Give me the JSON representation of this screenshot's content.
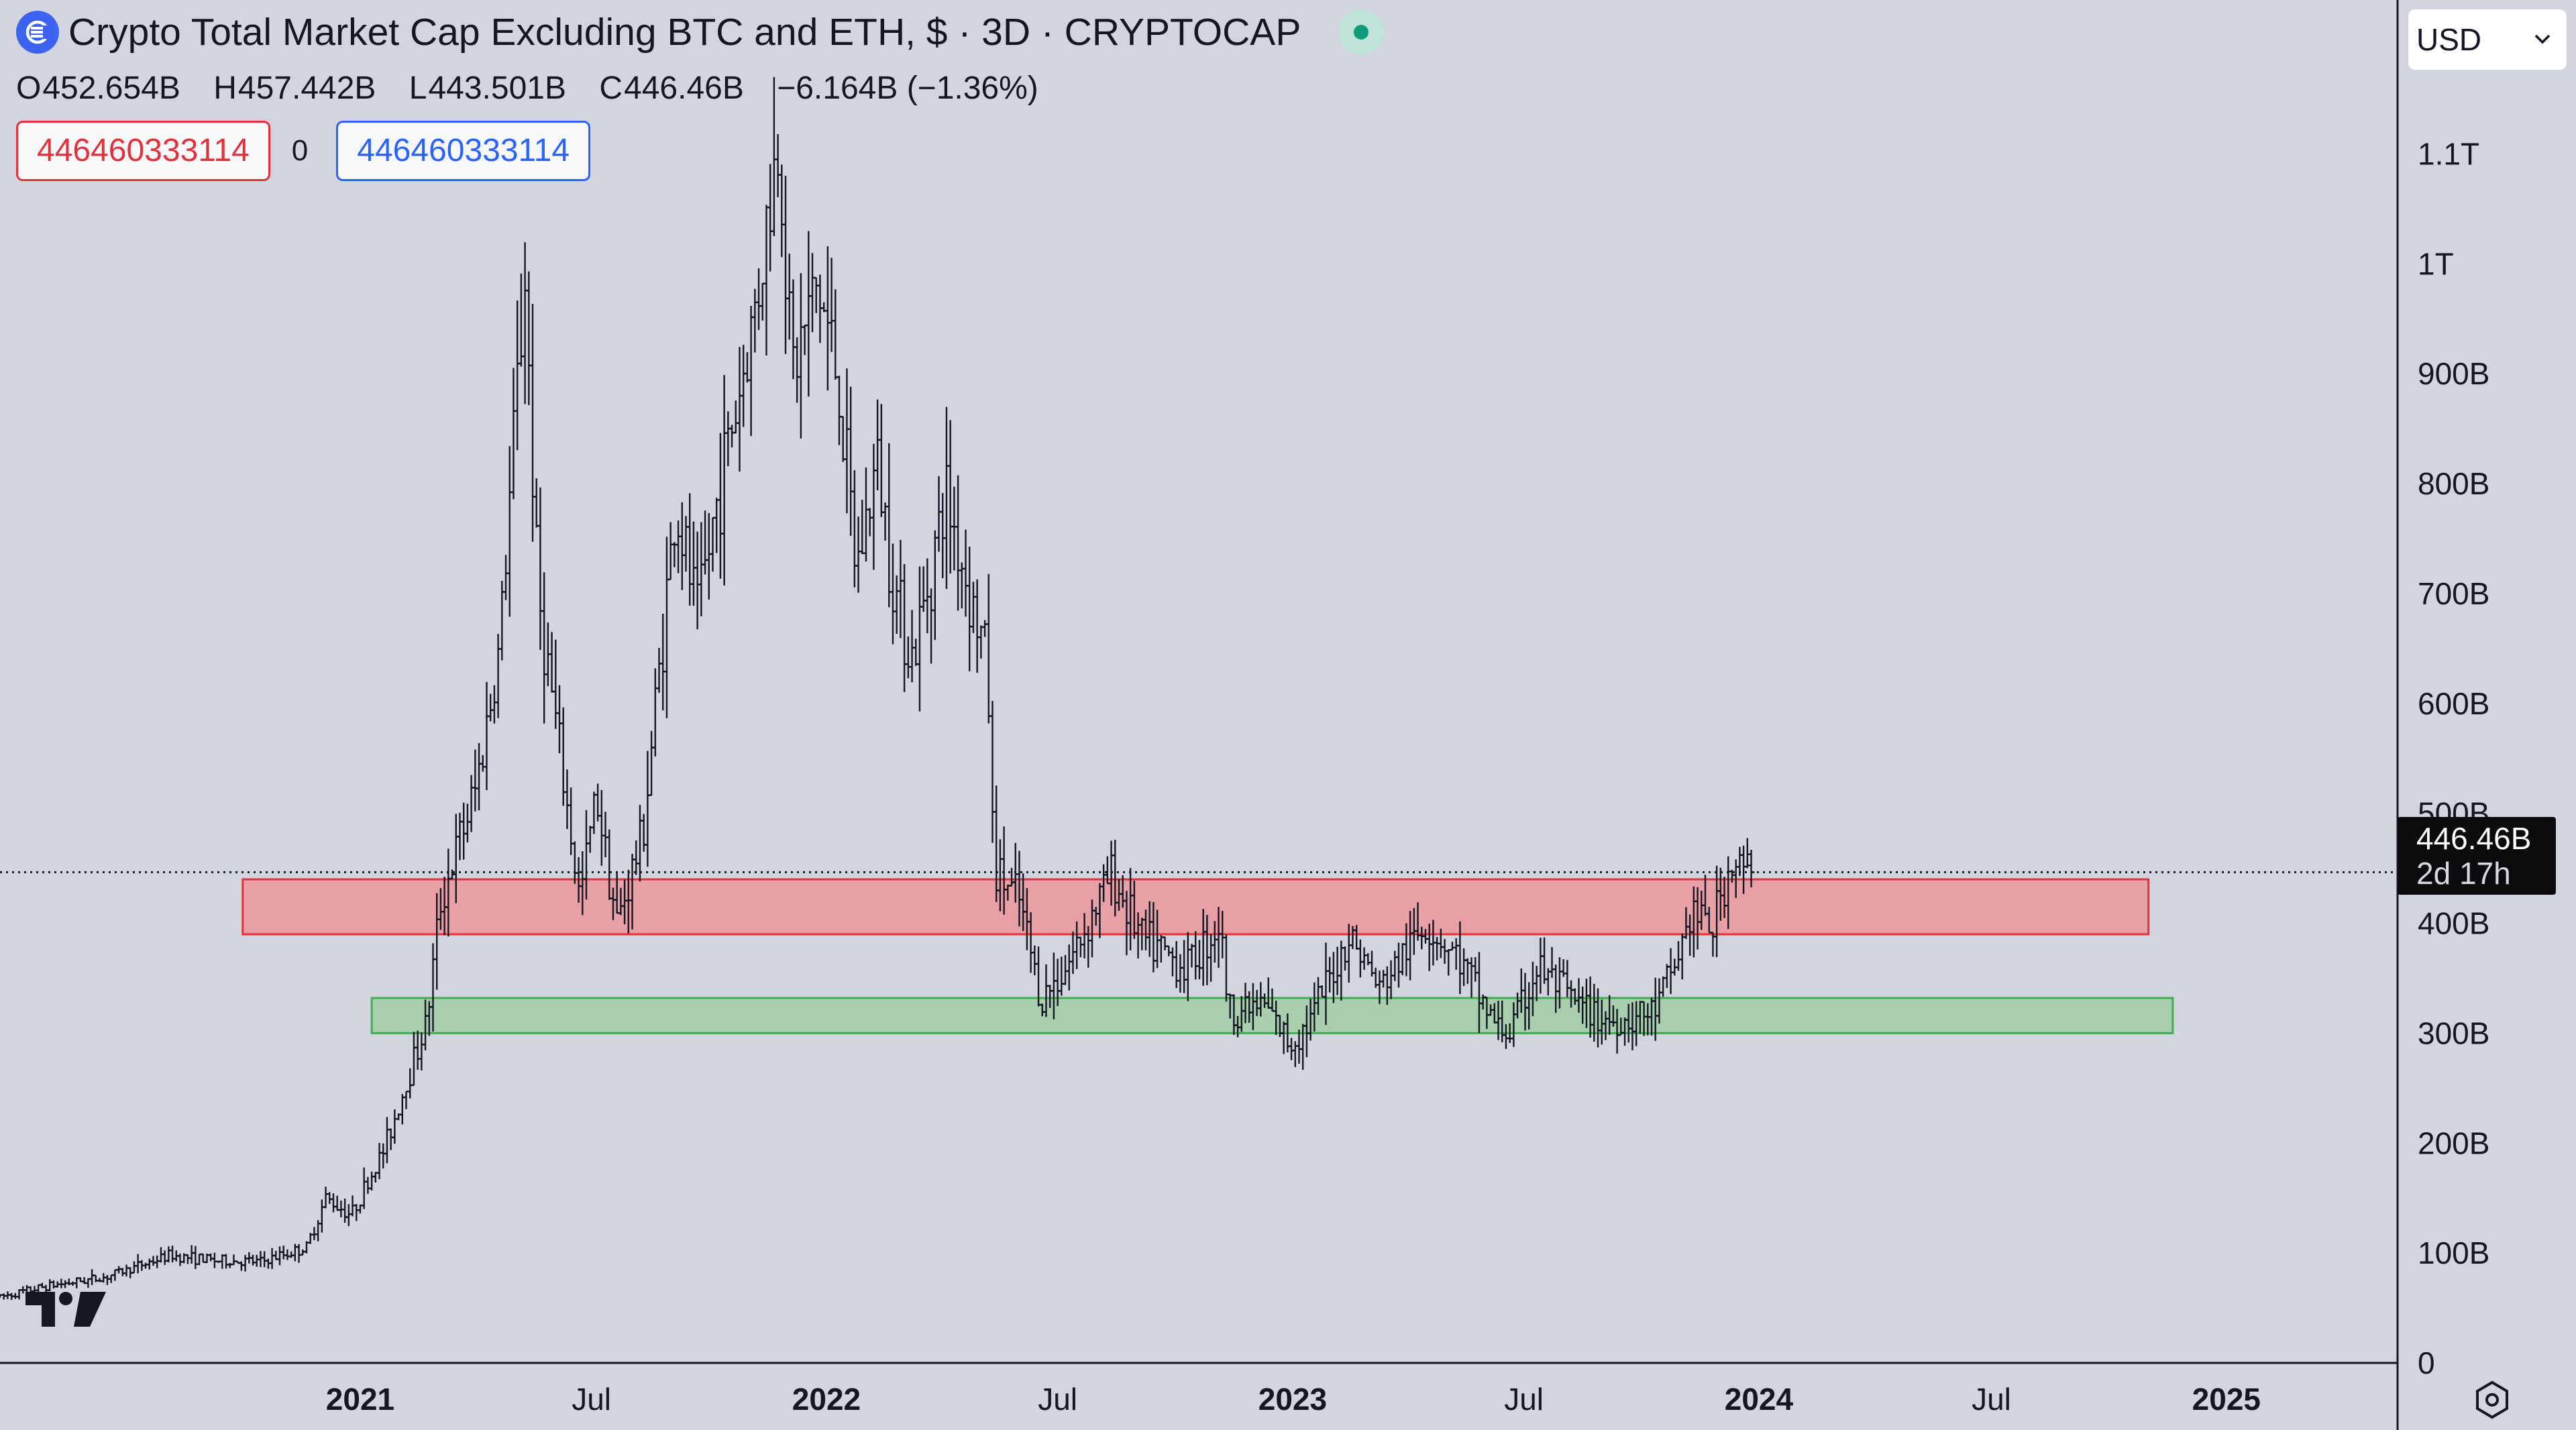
{
  "header": {
    "title": "Crypto Total Market Cap Excluding BTC and ETH, $ · 3D · CRYPTOCAP",
    "icon": "cryptocap-logo-icon",
    "status_indicator": "market-open-dot-icon"
  },
  "ohlc": {
    "open_label": "O",
    "open": "452.654B",
    "high_label": "H",
    "high": "457.442B",
    "low_label": "L",
    "low": "443.501B",
    "close_label": "C",
    "close": "446.46B",
    "change": "−6.164B (−1.36%)"
  },
  "inputs": {
    "left_value": "446460333114",
    "middle": "0",
    "right_value": "446460333114"
  },
  "currency": {
    "value": "USD",
    "icon": "chevron-down-icon"
  },
  "price_tag": {
    "price": "446.46B",
    "countdown": "2d 17h"
  },
  "colors": {
    "background": "#d2d5df",
    "candle": "#131722",
    "resistance_zone_fill": "#e8a0a6",
    "resistance_zone_border": "#e1323c",
    "support_zone_fill": "#a9ceae",
    "support_zone_border": "#3fae4f",
    "accent_blue": "#2962ff"
  },
  "chart_data": {
    "type": "ohlc",
    "y_scale": "linear",
    "ylim": [
      0,
      1240000000000
    ],
    "ytick_values": [
      0,
      100000000000,
      200000000000,
      300000000000,
      400000000000,
      500000000000,
      600000000000,
      700000000000,
      800000000000,
      900000000000,
      1000000000000,
      1100000000000
    ],
    "ytick_labels": [
      "0",
      "100B",
      "200B",
      "300B",
      "400B",
      "500B",
      "600B",
      "700B",
      "800B",
      "900B",
      "1T",
      "1.1T"
    ],
    "xlim": [
      "2020-03-25",
      "2025-05-15"
    ],
    "xtick_dates": [
      "2021-01-01",
      "2021-07-01",
      "2022-01-01",
      "2022-07-01",
      "2023-01-01",
      "2023-07-01",
      "2024-01-01",
      "2024-07-01",
      "2025-01-01"
    ],
    "xtick_labels": [
      "2021",
      "Jul",
      "2022",
      "Jul",
      "2023",
      "Jul",
      "2024",
      "Jul",
      "2025"
    ],
    "xtick_bold": [
      true,
      false,
      true,
      false,
      true,
      false,
      true,
      false,
      true
    ],
    "last_price": 446460000000,
    "zones": [
      {
        "name": "resistance",
        "x_start": "2020-10-01",
        "x_end": "2024-11-01",
        "y_low": 390000000000,
        "y_high": 440000000000,
        "color": "red"
      },
      {
        "name": "support",
        "x_start": "2021-01-10",
        "x_end": "2024-11-20",
        "y_low": 300000000000,
        "y_high": 332000000000,
        "color": "green"
      }
    ],
    "price_path": [
      [
        "2020-03-25",
        60000000000
      ],
      [
        "2020-05-01",
        70000000000
      ],
      [
        "2020-06-15",
        78000000000
      ],
      [
        "2020-08-05",
        98000000000
      ],
      [
        "2020-09-10",
        93000000000
      ],
      [
        "2020-10-15",
        92000000000
      ],
      [
        "2020-11-20",
        105000000000
      ],
      [
        "2020-12-05",
        150000000000
      ],
      [
        "2020-12-25",
        135000000000
      ],
      [
        "2021-01-20",
        195000000000
      ],
      [
        "2021-02-10",
        270000000000
      ],
      [
        "2021-02-22",
        310000000000
      ],
      [
        "2021-03-05",
        420000000000
      ],
      [
        "2021-04-01",
        520000000000
      ],
      [
        "2021-04-20",
        650000000000
      ],
      [
        "2021-05-10",
        990000000000
      ],
      [
        "2021-05-20",
        700000000000
      ],
      [
        "2021-06-22",
        420000000000
      ],
      [
        "2021-07-05",
        520000000000
      ],
      [
        "2021-07-21",
        400000000000
      ],
      [
        "2021-08-10",
        480000000000
      ],
      [
        "2021-09-05",
        780000000000
      ],
      [
        "2021-09-22",
        680000000000
      ],
      [
        "2021-10-10",
        800000000000
      ],
      [
        "2021-11-05",
        950000000000
      ],
      [
        "2021-11-25",
        1120000000000
      ],
      [
        "2021-12-05",
        900000000000
      ],
      [
        "2021-12-25",
        980000000000
      ],
      [
        "2022-01-10",
        900000000000
      ],
      [
        "2022-01-24",
        720000000000
      ],
      [
        "2022-02-10",
        820000000000
      ],
      [
        "2022-02-24",
        700000000000
      ],
      [
        "2022-03-10",
        640000000000
      ],
      [
        "2022-03-25",
        730000000000
      ],
      [
        "2022-04-05",
        790000000000
      ],
      [
        "2022-04-25",
        690000000000
      ],
      [
        "2022-05-07",
        640000000000
      ],
      [
        "2022-05-12",
        450000000000
      ],
      [
        "2022-06-01",
        420000000000
      ],
      [
        "2022-06-18",
        330000000000
      ],
      [
        "2022-07-10",
        365000000000
      ],
      [
        "2022-08-12",
        445000000000
      ],
      [
        "2022-09-05",
        385000000000
      ],
      [
        "2022-10-10",
        360000000000
      ],
      [
        "2022-11-05",
        400000000000
      ],
      [
        "2022-11-12",
        320000000000
      ],
      [
        "2022-12-10",
        325000000000
      ],
      [
        "2022-12-30",
        290000000000
      ],
      [
        "2023-01-14",
        310000000000
      ],
      [
        "2023-02-15",
        390000000000
      ],
      [
        "2023-03-10",
        340000000000
      ],
      [
        "2023-04-15",
        400000000000
      ],
      [
        "2023-05-10",
        370000000000
      ],
      [
        "2023-06-10",
        305000000000
      ],
      [
        "2023-06-20",
        300000000000
      ],
      [
        "2023-07-12",
        360000000000
      ],
      [
        "2023-08-17",
        320000000000
      ],
      [
        "2023-09-10",
        310000000000
      ],
      [
        "2023-10-10",
        318000000000
      ],
      [
        "2023-10-25",
        355000000000
      ],
      [
        "2023-11-10",
        410000000000
      ],
      [
        "2023-11-25",
        395000000000
      ],
      [
        "2023-12-10",
        455000000000
      ],
      [
        "2023-12-26",
        446460000000
      ]
    ]
  }
}
